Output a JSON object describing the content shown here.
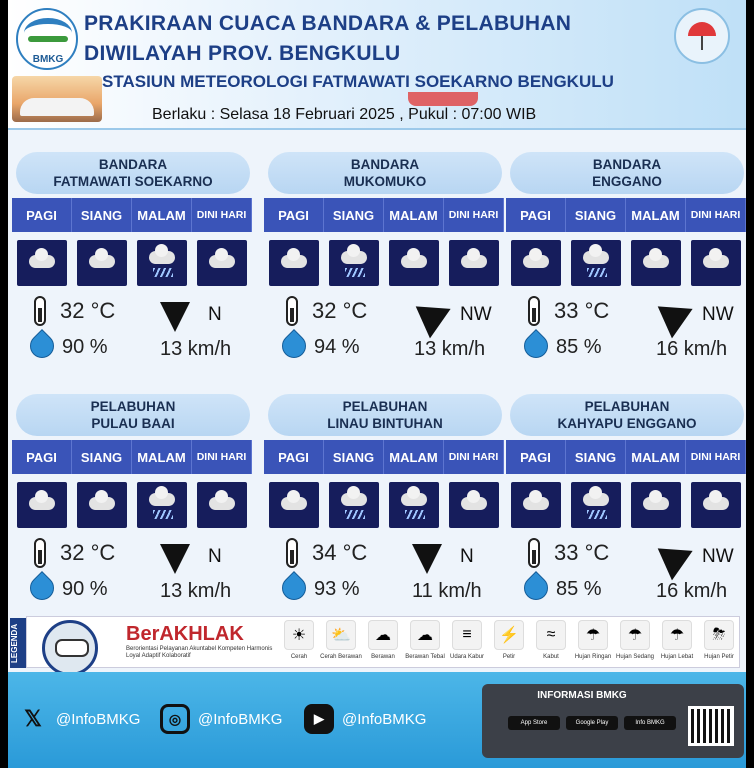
{
  "header": {
    "logo_text": "BMKG",
    "line1": "PRAKIRAAN CUACA BANDARA & PELABUHAN",
    "line2": "DIWILAYAH PROV. BENGKULU",
    "line3": "STASIUN METEOROLOGI FATMAWATI SOEKARNO BENGKULU",
    "valid": "Berlaku : Selasa 18 Februari 2025 , Pukul : 07:00 WIB"
  },
  "periods": [
    "PAGI",
    "SIANG",
    "MALAM",
    "DINI HARI"
  ],
  "stations": [
    {
      "line1": "BANDARA",
      "line2": "FATMAWATI SOEKARNO",
      "temp": "32 °C",
      "humidity": "90 %",
      "wind_dir": "N",
      "wind_speed": "13 km/h",
      "icons": [
        "cloudy-icon",
        "cloudy-icon",
        "light-rain-icon",
        "cloudy-icon"
      ]
    },
    {
      "line1": "BANDARA",
      "line2": "MUKOMUKO",
      "temp": "32 °C",
      "humidity": "94 %",
      "wind_dir": "NW",
      "wind_speed": "13 km/h",
      "icons": [
        "cloudy-icon",
        "light-rain-icon",
        "cloudy-icon",
        "cloudy-icon"
      ]
    },
    {
      "line1": "BANDARA",
      "line2": "ENGGANO",
      "temp": "33 °C",
      "humidity": "85 %",
      "wind_dir": "NW",
      "wind_speed": "16 km/h",
      "icons": [
        "cloudy-icon",
        "light-rain-icon",
        "cloudy-icon",
        "cloudy-icon"
      ]
    },
    {
      "line1": "PELABUHAN",
      "line2": "PULAU BAAI",
      "temp": "32 °C",
      "humidity": "90 %",
      "wind_dir": "N",
      "wind_speed": "13 km/h",
      "icons": [
        "cloudy-icon",
        "cloudy-icon",
        "light-rain-icon",
        "cloudy-icon"
      ]
    },
    {
      "line1": "PELABUHAN",
      "line2": "LINAU BINTUHAN",
      "temp": "34 °C",
      "humidity": "93 %",
      "wind_dir": "N",
      "wind_speed": "11 km/h",
      "icons": [
        "cloudy-icon",
        "light-rain-icon",
        "light-rain-icon",
        "cloudy-icon"
      ]
    },
    {
      "line1": "PELABUHAN",
      "line2": "KAHYAPU ENGGANO",
      "temp": "33 °C",
      "humidity": "85 %",
      "wind_dir": "NW",
      "wind_speed": "16 km/h",
      "icons": [
        "cloudy-icon",
        "light-rain-icon",
        "cloudy-icon",
        "cloudy-icon"
      ]
    }
  ],
  "legend": {
    "tag": "LEGENDA",
    "brand": "BerAKHLAK",
    "brand_sub": "Berorientasi Pelayanan Akuntabel Kompeten Harmonis Loyal Adaptif Kolaboratif",
    "items": [
      "Cerah",
      "Cerah Berawan",
      "Berawan",
      "Berawan Tebal",
      "Udara Kabur",
      "Petir",
      "Kabut",
      "Hujan Ringan",
      "Hujan Sedang",
      "Hujan Lebat",
      "Hujan Petir"
    ]
  },
  "footer": {
    "social": [
      {
        "network": "x-icon",
        "handle": "@InfoBMKG"
      },
      {
        "network": "instagram-icon",
        "handle": "@InfoBMKG"
      },
      {
        "network": "youtube-icon",
        "handle": "@InfoBMKG"
      }
    ],
    "info_title": "INFORMASI BMKG",
    "stores": [
      "App Store",
      "Google Play",
      "Info BMKG"
    ]
  }
}
